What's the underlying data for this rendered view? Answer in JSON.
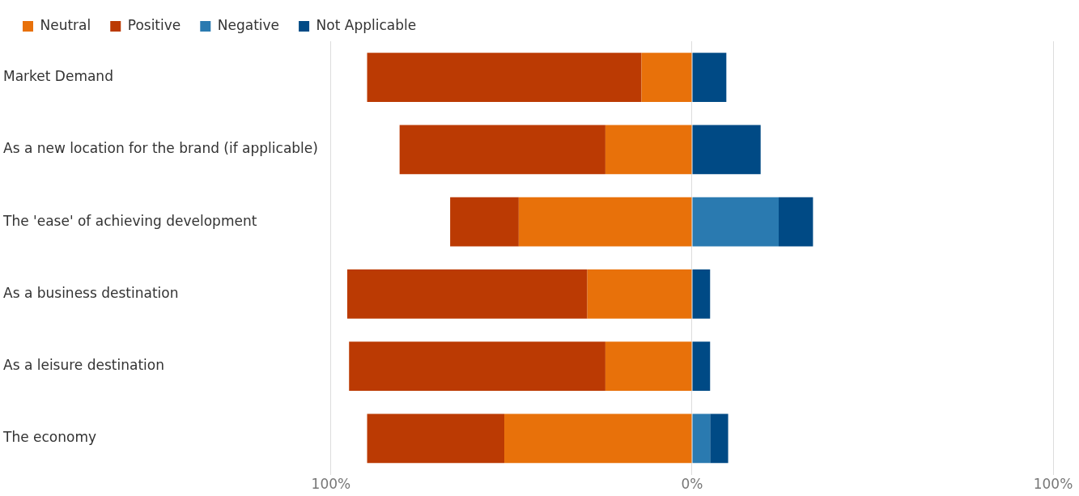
{
  "chart_data": {
    "type": "bar",
    "orientation": "horizontal",
    "stacked": true,
    "categories": [
      "Market Demand",
      "As a new location for the brand (if applicable)",
      "The 'ease' of achieving development",
      "As a business destination",
      "As a leisure destination",
      "The economy"
    ],
    "series": [
      {
        "name": "Neutral",
        "color": "#e8710a",
        "values": [
          -14,
          -24,
          -48,
          -29,
          -24,
          -52
        ]
      },
      {
        "name": "Positive",
        "color": "#bb3a03",
        "values": [
          -76,
          -57,
          -19,
          -66.5,
          -71,
          -38
        ]
      },
      {
        "name": "Negative",
        "color": "#2a7ab0",
        "values": [
          null,
          null,
          24,
          null,
          null,
          5
        ]
      },
      {
        "name": "Not Applicable",
        "color": "#004a85",
        "values": [
          9.5,
          19,
          9.5,
          5,
          5,
          5
        ]
      }
    ],
    "xlim": [
      -100,
      100
    ],
    "xticks": [
      {
        "value": -100,
        "label": "100%"
      },
      {
        "value": 0,
        "label": "0%"
      },
      {
        "value": 100,
        "label": "100%"
      }
    ],
    "grid": "x",
    "legend": "top left"
  }
}
